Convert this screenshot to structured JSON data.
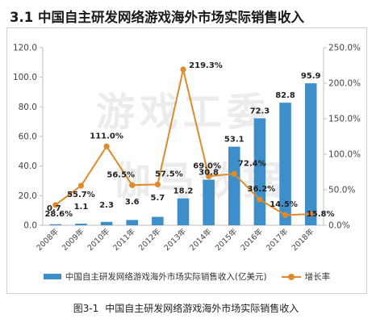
{
  "header": {
    "title": "3.1  中国自主研发网络游戏海外市场实际销售收入"
  },
  "caption": {
    "number": "图3-1",
    "text": "中国自主研发网络游戏海外市场实际销售收入"
  },
  "chart_data": {
    "type": "bar",
    "categories": [
      "2008年",
      "2009年",
      "2010年",
      "2011年",
      "2012年",
      "2013年",
      "2014年",
      "2015年",
      "2016年",
      "2017年",
      "2018年"
    ],
    "series": [
      {
        "name": "中国自主研发网络游戏海外市场实际销售收入(亿美元)",
        "type": "bar",
        "axis": "left",
        "values": [
          0.7,
          1.1,
          2.3,
          3.6,
          5.7,
          18.2,
          30.8,
          53.1,
          72.3,
          82.8,
          95.9
        ],
        "labels": [
          "0.7",
          "1.1",
          "2.3",
          "3.6",
          "5.7",
          "18.2",
          "30.8",
          "53.1",
          "72.3",
          "82.8",
          "95.9"
        ],
        "color": "#3d8ec9"
      },
      {
        "name": "增长率",
        "type": "line",
        "axis": "right",
        "values": [
          28.6,
          55.7,
          111.0,
          56.5,
          57.5,
          219.3,
          69.0,
          72.4,
          36.2,
          14.5,
          15.8
        ],
        "labels": [
          "28.6%",
          "55.7%",
          "111.0%",
          "56.5%",
          "57.5%",
          "219.3%",
          "69.0%",
          "72.4%",
          "36.2%",
          "14.5%",
          "15.8%"
        ],
        "color": "#e08a2c"
      }
    ],
    "y_left": {
      "min": 0,
      "max": 120,
      "ticks": [
        "0.0",
        "20.0",
        "40.0",
        "60.0",
        "80.0",
        "100.0",
        "120.0"
      ]
    },
    "y_right": {
      "min": 0,
      "max": 250,
      "ticks": [
        "0.0%",
        "50.0%",
        "100.0%",
        "150.0%",
        "200.0%",
        "250.0%"
      ]
    },
    "watermark": "游戏工委 伽马数据",
    "legend_position": "bottom",
    "grid": false
  }
}
